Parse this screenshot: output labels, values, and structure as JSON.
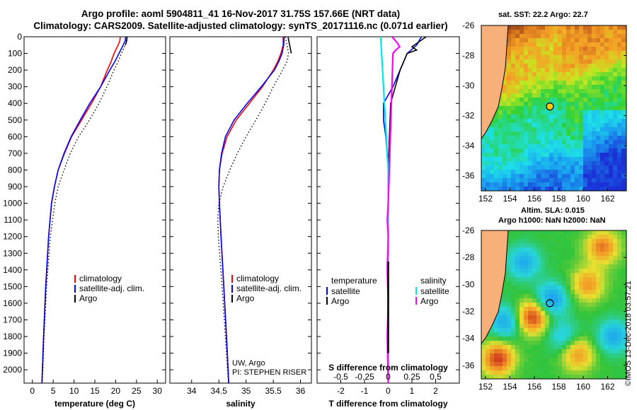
{
  "header": {
    "title_line1": "Argo profile: aoml 5904811_41 16-Nov-2017 31.75S 157.66E (NRT data)",
    "title_line2": "Climatology: CARS2009. Satellite-adjusted climatology: synTS_20171116.nc (0.071d earlier)"
  },
  "colors": {
    "climatology": "#ff0000",
    "satellite": "#0000ff",
    "argo": "#000000",
    "s_satellite": "#00e5ee",
    "s_argo": "#ff00ff",
    "land": "#f7b07a"
  },
  "chart_data": [
    {
      "id": "temperature",
      "type": "line",
      "xlabel": "temperature (deg C)",
      "ylabel": "",
      "xlim": [
        -2,
        32
      ],
      "ylim": [
        2080,
        0
      ],
      "xticks": [
        0,
        5,
        10,
        15,
        20,
        25,
        30
      ],
      "yticks": [
        0,
        100,
        200,
        300,
        400,
        500,
        600,
        700,
        800,
        900,
        1000,
        1100,
        1200,
        1300,
        1400,
        1500,
        1600,
        1700,
        1800,
        1900,
        2000
      ],
      "legend": [
        "climatology",
        "satellite-adj. clim.",
        "Argo"
      ],
      "series": [
        {
          "name": "climatology",
          "depth": [
            0,
            25,
            50,
            100,
            150,
            200,
            300,
            400,
            500,
            600,
            700,
            800,
            900,
            1000,
            1200,
            1500,
            1800,
            2000,
            2080
          ],
          "values": [
            21.1,
            21.0,
            20.6,
            19.6,
            18.9,
            18.0,
            16.4,
            14.2,
            11.8,
            9.4,
            7.7,
            6.2,
            5.3,
            4.6,
            3.9,
            3.2,
            2.7,
            2.4,
            2.3
          ]
        },
        {
          "name": "satellite-adj. clim.",
          "depth": [
            0,
            25,
            50,
            100,
            150,
            200,
            300,
            400,
            500,
            600,
            700,
            800,
            900,
            1000,
            1200,
            1500,
            1800,
            2000,
            2080
          ],
          "values": [
            22.4,
            22.3,
            21.8,
            20.8,
            19.8,
            18.6,
            16.4,
            13.8,
            11.5,
            9.3,
            7.6,
            6.2,
            5.3,
            4.6,
            3.9,
            3.2,
            2.7,
            2.4,
            2.3
          ]
        },
        {
          "name": "Argo",
          "depth": [
            0,
            25,
            50,
            100,
            150,
            200,
            300,
            400,
            500,
            600,
            700,
            800,
            900,
            1000,
            1200,
            1500,
            1800,
            2000,
            2080
          ],
          "values": [
            22.7,
            22.6,
            22.3,
            21.4,
            20.6,
            19.6,
            17.9,
            16.0,
            13.7,
            11.1,
            9.1,
            7.6,
            6.2,
            5.4,
            4.3,
            3.4,
            2.8,
            2.5,
            2.3
          ]
        }
      ]
    },
    {
      "id": "salinity",
      "type": "line",
      "xlabel": "salinity",
      "ylabel": "",
      "xlim": [
        33.6,
        36.2
      ],
      "ylim": [
        2080,
        0
      ],
      "xticks": [
        34,
        34.5,
        35,
        35.5,
        36
      ],
      "legend": [
        "climatology",
        "satellite-adj. clim.",
        "Argo"
      ],
      "series": [
        {
          "name": "climatology",
          "depth": [
            0,
            50,
            100,
            150,
            200,
            300,
            400,
            500,
            600,
            700,
            800,
            900,
            1000,
            1200,
            1500,
            1800,
            2000,
            2080
          ],
          "values": [
            35.68,
            35.68,
            35.64,
            35.58,
            35.5,
            35.3,
            35.06,
            34.82,
            34.65,
            34.56,
            34.51,
            34.5,
            34.51,
            34.54,
            34.59,
            34.64,
            34.67,
            34.68
          ]
        },
        {
          "name": "satellite-adj. clim.",
          "depth": [
            0,
            50,
            100,
            150,
            200,
            300,
            400,
            500,
            600,
            700,
            800,
            900,
            1000,
            1200,
            1500,
            1800,
            2000,
            2080
          ],
          "values": [
            35.7,
            35.69,
            35.66,
            35.6,
            35.52,
            35.28,
            35.02,
            34.78,
            34.62,
            34.55,
            34.51,
            34.5,
            34.51,
            34.54,
            34.59,
            34.64,
            34.67,
            34.68
          ]
        },
        {
          "name": "Argo",
          "depth": [
            0,
            50,
            100,
            150,
            200,
            300,
            400,
            500,
            600,
            700,
            800,
            900,
            1000,
            1100,
            1200,
            1500,
            1800,
            2000,
            2080
          ],
          "values": [
            35.72,
            35.75,
            35.78,
            35.75,
            35.67,
            35.5,
            35.35,
            35.18,
            35.0,
            34.84,
            34.7,
            34.58,
            34.5,
            34.48,
            34.49,
            34.56,
            34.62,
            34.66,
            34.68
          ]
        }
      ]
    },
    {
      "id": "difference",
      "type": "line",
      "xlabel": "T difference from climatology",
      "xlabel_top": "S difference from climatology",
      "xlim": [
        -3,
        3
      ],
      "ylim": [
        2080,
        0
      ],
      "xticks": [
        -2,
        -1,
        0,
        1,
        2
      ],
      "xtick_labels_top": [
        "-0.5",
        "-0.25",
        "0",
        "0.25",
        "0.5"
      ],
      "legend_t": {
        "title": "temperature",
        "items": [
          "satellite",
          "Argo"
        ]
      },
      "legend_s": {
        "title": "salinity",
        "items": [
          "satellite",
          "Argo"
        ]
      },
      "series": [
        {
          "name": "T satellite",
          "depth": [
            0,
            50,
            100,
            200,
            300,
            400,
            500,
            600,
            800,
            1000,
            2080
          ],
          "values": [
            1.4,
            1.2,
            0.8,
            0.5,
            0.2,
            -0.2,
            -0.2,
            -0.1,
            0.0,
            0.0,
            0.0
          ]
        },
        {
          "name": "T Argo",
          "depth": [
            0,
            30,
            60,
            80,
            100,
            200,
            400,
            800,
            1200,
            2080
          ],
          "values": [
            1.6,
            1.3,
            1.0,
            1.2,
            0.8,
            0.5,
            0.1,
            0.0,
            0.0,
            0.0
          ]
        },
        {
          "name": "S satellite",
          "depth": [
            0,
            200,
            400,
            600,
            800,
            1000,
            1500,
            2080
          ],
          "values": [
            -0.08,
            -0.06,
            -0.04,
            -0.02,
            0.0,
            0.0,
            0.0,
            0.0
          ]
        },
        {
          "name": "S Argo",
          "depth": [
            0,
            40,
            60,
            80,
            100,
            1000,
            1100,
            1200,
            1400,
            1600,
            1800,
            2080
          ],
          "values": [
            0.04,
            0.1,
            0.12,
            0.08,
            0.05,
            0.0,
            -0.01,
            0.0,
            -0.01,
            0.0,
            -0.01,
            0.0
          ]
        }
      ]
    }
  ],
  "maps": {
    "sst": {
      "title": "sat. SST: 22.2 Argo: 22.7",
      "lat_ticks": [
        "-26",
        "-28",
        "-30",
        "-32",
        "-34",
        "-36"
      ],
      "lon_ticks": [
        "152",
        "154",
        "156",
        "158",
        "160",
        "162"
      ]
    },
    "sla": {
      "title_line1": "Altim. SLA: 0.015",
      "title_line2": "Argo h1000: NaN h2000: NaN",
      "lat_ticks": [
        "-26",
        "-28",
        "-30",
        "-32",
        "-34",
        "-36"
      ],
      "lon_ticks": [
        "152",
        "154",
        "156",
        "158",
        "160",
        "162"
      ]
    }
  },
  "credits": {
    "source_line1": "UW, Argo",
    "source_line2": "PI: STEPHEN RISER",
    "imos_stamp": "©IMOS 13-Dec-2018 03:57:21"
  }
}
